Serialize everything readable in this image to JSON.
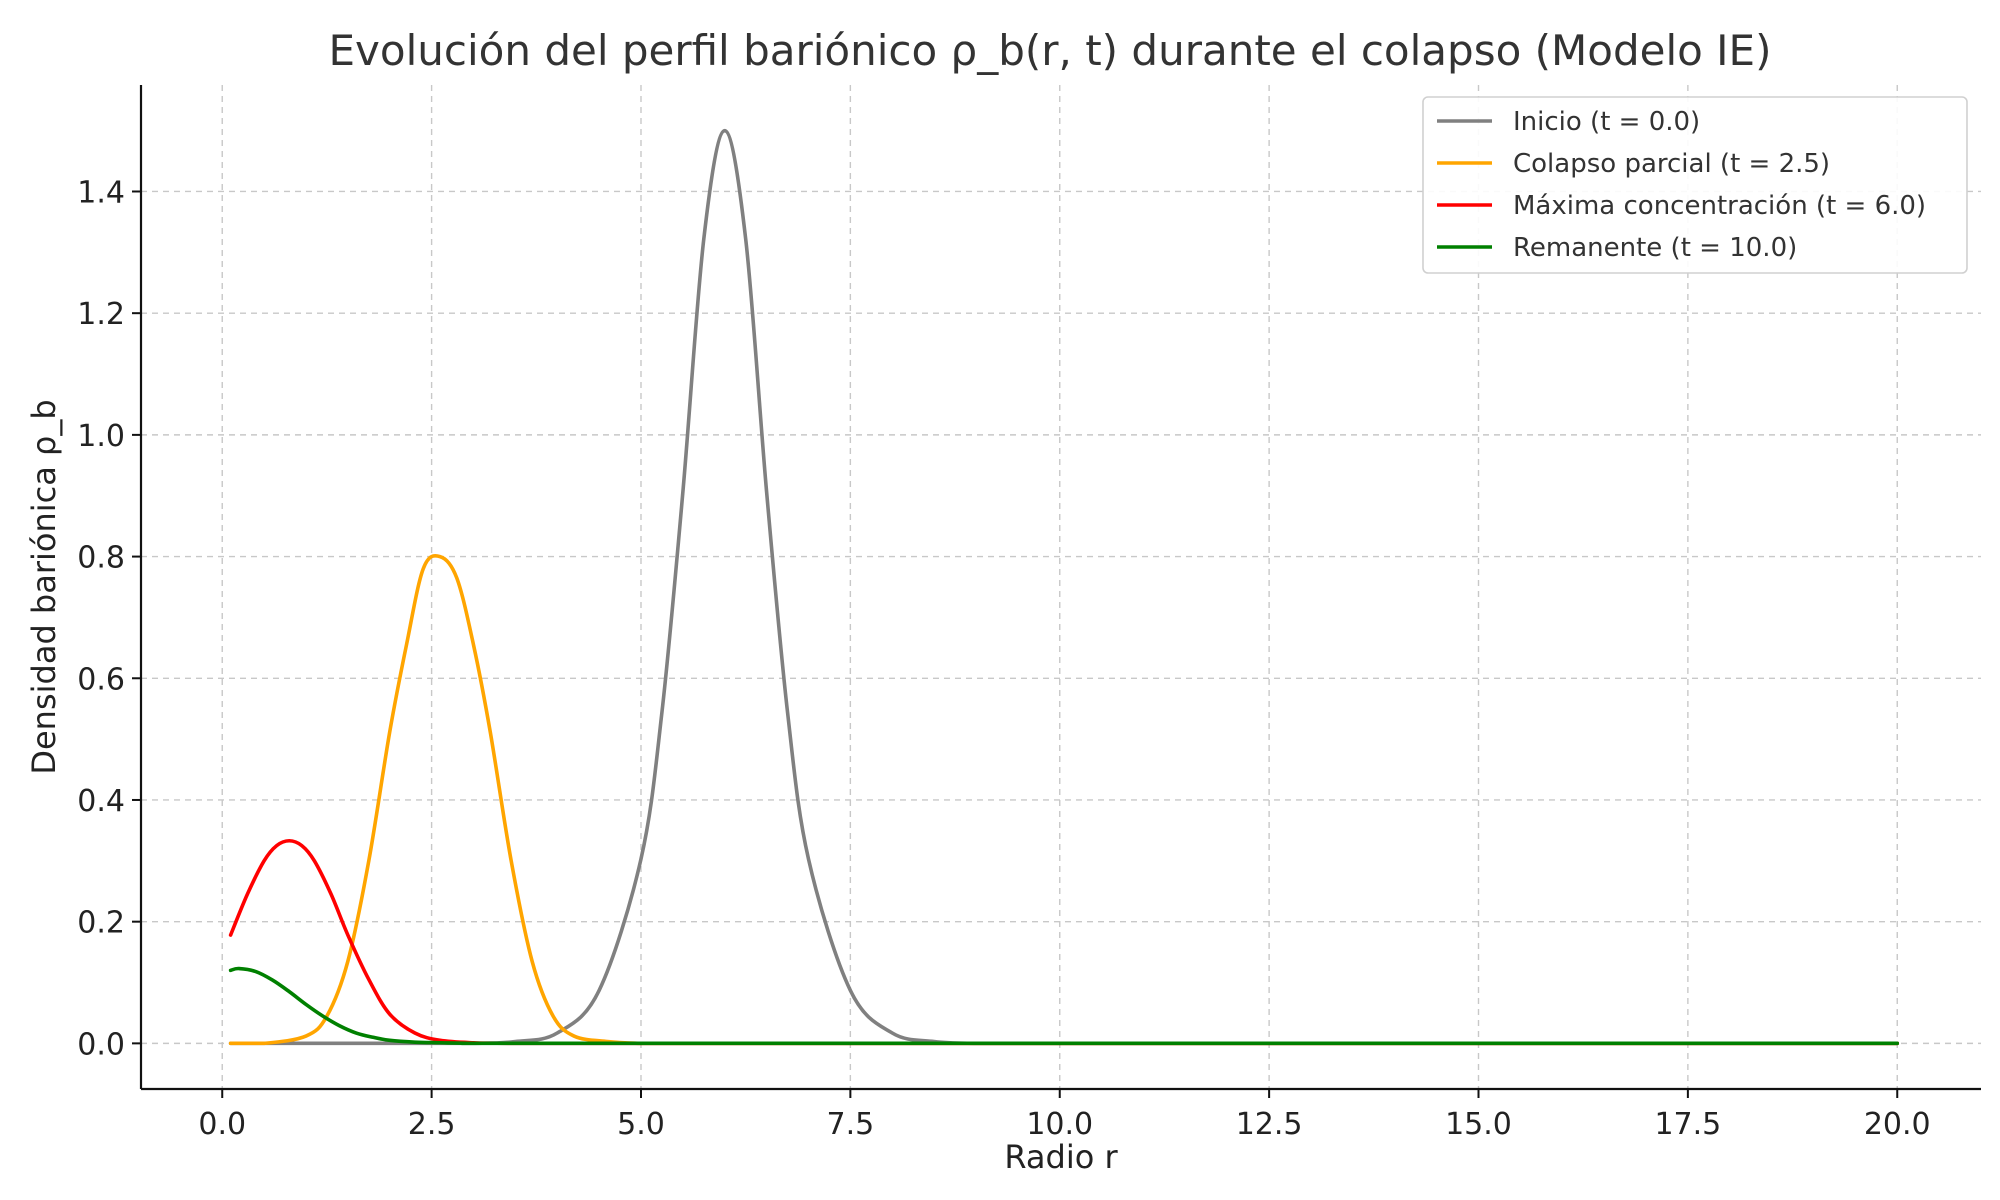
{
  "chart_data": {
    "type": "line",
    "title": "Evolución del perfil bariónico ρ_b(r, t) durante el colapso (Modelo IE)",
    "xlabel": "Radio r",
    "ylabel": "Densidad bariónica ρ_b",
    "xlim": [
      -0.97,
      21.0
    ],
    "ylim": [
      -0.075,
      1.575
    ],
    "x_ticks": [
      0.0,
      2.5,
      5.0,
      7.5,
      10.0,
      12.5,
      15.0,
      17.5,
      20.0
    ],
    "x_tick_labels": [
      "0.0",
      "2.5",
      "5.0",
      "7.5",
      "10.0",
      "12.5",
      "15.0",
      "17.5",
      "20.0"
    ],
    "y_ticks": [
      0.0,
      0.2,
      0.4,
      0.6,
      0.8,
      1.0,
      1.2,
      1.4
    ],
    "y_tick_labels": [
      "0.0",
      "0.2",
      "0.4",
      "0.6",
      "0.8",
      "1.0",
      "1.2",
      "1.4"
    ],
    "grid": true,
    "legend_position": "top-right",
    "series": [
      {
        "name": "Inicio (t = 0.0)",
        "color": "#808080",
        "x": [
          0.1,
          1.0,
          2.0,
          3.0,
          3.5,
          4.0,
          4.5,
          5.0,
          5.25,
          5.5,
          5.75,
          6.0,
          6.25,
          6.5,
          6.75,
          7.0,
          7.5,
          8.0,
          8.5,
          9.0,
          10.0,
          15.0,
          20.0
        ],
        "y": [
          0.0,
          0.0,
          0.0,
          0.0,
          0.003,
          0.017,
          0.087,
          0.303,
          0.544,
          0.906,
          1.322,
          1.5,
          1.322,
          0.906,
          0.544,
          0.303,
          0.087,
          0.017,
          0.003,
          0.0,
          0.0,
          0.0,
          0.0
        ]
      },
      {
        "name": "Colapso parcial (t = 2.5)",
        "color": "#FFA500",
        "x": [
          0.1,
          0.5,
          1.0,
          1.25,
          1.5,
          1.75,
          2.0,
          2.2,
          2.4,
          2.6,
          2.8,
          3.0,
          3.2,
          3.45,
          3.7,
          3.95,
          4.2,
          4.6,
          5.0,
          5.5,
          6.0,
          10.0,
          20.0
        ],
        "y": [
          0.0,
          0.0,
          0.012,
          0.045,
          0.135,
          0.3,
          0.512,
          0.655,
          0.78,
          0.8,
          0.765,
          0.655,
          0.512,
          0.3,
          0.135,
          0.045,
          0.012,
          0.003,
          0.0,
          0.0,
          0.0,
          0.0,
          0.0
        ]
      },
      {
        "name": "Máxima concentración (t = 6.0)",
        "color": "#FF0000",
        "x": [
          0.1,
          0.3,
          0.5,
          0.65,
          0.8,
          0.95,
          1.1,
          1.3,
          1.5,
          1.75,
          2.0,
          2.3,
          2.6,
          3.0,
          3.5,
          4.0,
          10.0,
          20.0
        ],
        "y": [
          0.178,
          0.245,
          0.3,
          0.325,
          0.333,
          0.325,
          0.3,
          0.245,
          0.178,
          0.105,
          0.048,
          0.017,
          0.005,
          0.001,
          0.0,
          0.0,
          0.0,
          0.0
        ]
      },
      {
        "name": "Remanente (t = 10.0)",
        "color": "#008000",
        "x": [
          0.1,
          0.2,
          0.4,
          0.6,
          0.8,
          1.0,
          1.2,
          1.4,
          1.6,
          1.8,
          2.0,
          2.3,
          2.6,
          3.0,
          3.5,
          10.0,
          20.0
        ],
        "y": [
          0.12,
          0.123,
          0.118,
          0.104,
          0.085,
          0.064,
          0.045,
          0.029,
          0.017,
          0.01,
          0.005,
          0.002,
          0.001,
          0.0,
          0.0,
          0.0,
          0.0
        ]
      }
    ]
  }
}
